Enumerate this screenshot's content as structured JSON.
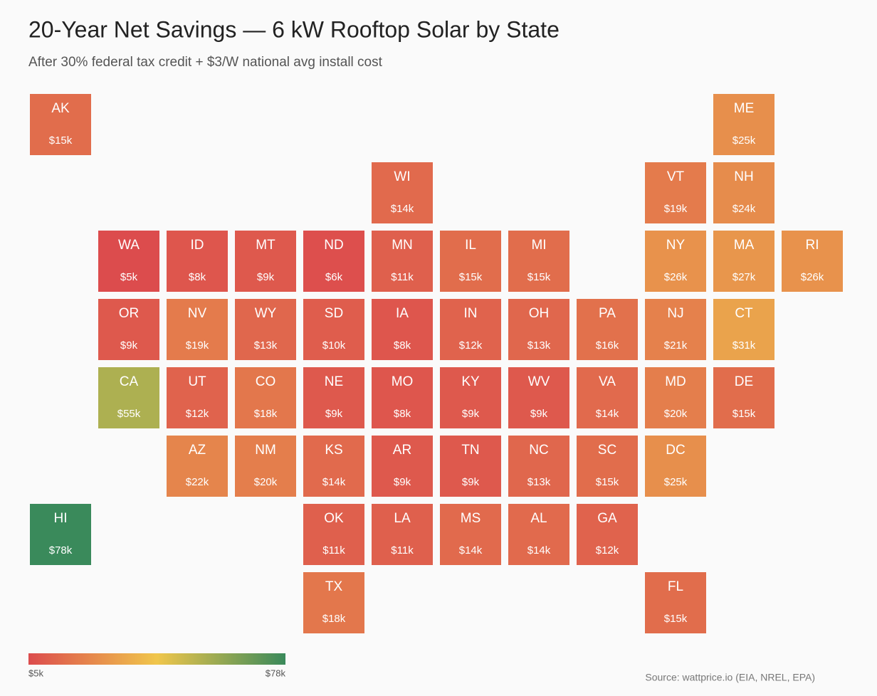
{
  "chart_data": {
    "type": "tile-map",
    "title": "20-Year Net Savings — 6 kW Rooftop Solar by State",
    "subtitle": "After 30% federal tax credit + $3/W national avg install cost",
    "source": "Source: wattprice.io (EIA, NREL, EPA)",
    "categories": [
      "AK",
      "ME",
      "WI",
      "VT",
      "NH",
      "WA",
      "ID",
      "MT",
      "ND",
      "MN",
      "IL",
      "MI",
      "NY",
      "MA",
      "RI",
      "OR",
      "NV",
      "WY",
      "SD",
      "IA",
      "IN",
      "OH",
      "PA",
      "NJ",
      "CT",
      "CA",
      "UT",
      "CO",
      "NE",
      "MO",
      "KY",
      "WV",
      "VA",
      "MD",
      "DE",
      "AZ",
      "NM",
      "KS",
      "AR",
      "TN",
      "NC",
      "SC",
      "DC",
      "HI",
      "OK",
      "LA",
      "MS",
      "AL",
      "GA",
      "TX",
      "FL"
    ],
    "values": [
      15,
      25,
      14,
      19,
      24,
      5,
      8,
      9,
      6,
      11,
      15,
      15,
      26,
      27,
      26,
      9,
      19,
      13,
      10,
      8,
      12,
      13,
      16,
      21,
      31,
      55,
      12,
      18,
      9,
      8,
      9,
      9,
      14,
      20,
      15,
      22,
      20,
      14,
      9,
      9,
      13,
      15,
      25,
      78,
      11,
      11,
      14,
      14,
      12,
      18,
      15
    ],
    "value_labels": [
      "$15k",
      "$25k",
      "$14k",
      "$19k",
      "$24k",
      "$5k",
      "$8k",
      "$9k",
      "$6k",
      "$11k",
      "$15k",
      "$15k",
      "$26k",
      "$27k",
      "$26k",
      "$9k",
      "$19k",
      "$13k",
      "$10k",
      "$8k",
      "$12k",
      "$13k",
      "$16k",
      "$21k",
      "$31k",
      "$55k",
      "$12k",
      "$18k",
      "$9k",
      "$8k",
      "$9k",
      "$9k",
      "$14k",
      "$20k",
      "$15k",
      "$22k",
      "$20k",
      "$14k",
      "$9k",
      "$9k",
      "$13k",
      "$15k",
      "$25k",
      "$78k",
      "$11k",
      "$11k",
      "$14k",
      "$14k",
      "$12k",
      "$18k",
      "$15k"
    ],
    "color_scale": {
      "range": [
        5,
        78
      ],
      "colors": [
        "#dc4c4d",
        "#f0c64b",
        "#3a8a5b"
      ],
      "ticks": [
        {
          "value": 5,
          "label": "$5k"
        },
        {
          "value": 78,
          "label": "$78k"
        }
      ]
    }
  }
}
